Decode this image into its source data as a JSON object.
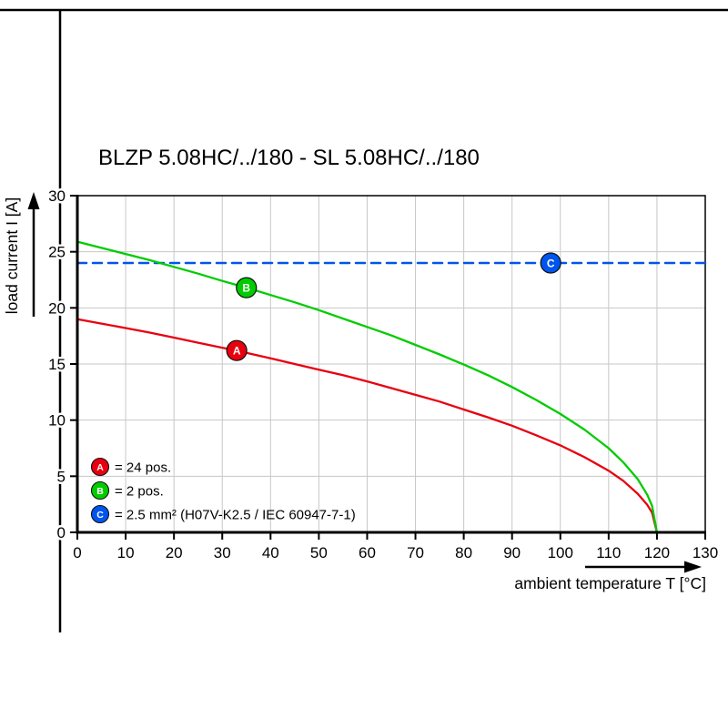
{
  "chart_data": {
    "type": "line",
    "title": "BLZP 5.08HC/../180 - SL 5.08HC/../180",
    "xlabel": "ambient temperature T [°C]",
    "ylabel": "load current I [A]",
    "xlim": [
      0,
      130
    ],
    "ylim": [
      0,
      30
    ],
    "x_ticks": [
      0,
      10,
      20,
      30,
      40,
      50,
      60,
      70,
      80,
      90,
      100,
      110,
      120,
      130
    ],
    "y_ticks": [
      0,
      5,
      10,
      15,
      20,
      25,
      30
    ],
    "grid": true,
    "legend_position": "lower-left",
    "series": [
      {
        "id": "A",
        "name": "24 pos.",
        "color": "#e8000f",
        "style": "solid",
        "points": [
          [
            0,
            19.0
          ],
          [
            5,
            18.6
          ],
          [
            10,
            18.2
          ],
          [
            15,
            17.8
          ],
          [
            20,
            17.35
          ],
          [
            25,
            16.9
          ],
          [
            30,
            16.45
          ],
          [
            35,
            16.0
          ],
          [
            40,
            15.5
          ],
          [
            45,
            15.0
          ],
          [
            50,
            14.5
          ],
          [
            55,
            14.0
          ],
          [
            60,
            13.45
          ],
          [
            65,
            12.85
          ],
          [
            70,
            12.25
          ],
          [
            75,
            11.65
          ],
          [
            80,
            10.95
          ],
          [
            85,
            10.25
          ],
          [
            90,
            9.5
          ],
          [
            95,
            8.65
          ],
          [
            100,
            7.75
          ],
          [
            105,
            6.7
          ],
          [
            110,
            5.5
          ],
          [
            113,
            4.6
          ],
          [
            116,
            3.45
          ],
          [
            118,
            2.45
          ],
          [
            119,
            1.75
          ],
          [
            120,
            0
          ]
        ]
      },
      {
        "id": "B",
        "name": "2 pos.",
        "color": "#00cc00",
        "style": "solid",
        "points": [
          [
            0,
            25.9
          ],
          [
            5,
            25.35
          ],
          [
            10,
            24.8
          ],
          [
            15,
            24.25
          ],
          [
            20,
            23.65
          ],
          [
            25,
            23.05
          ],
          [
            30,
            22.4
          ],
          [
            35,
            21.8
          ],
          [
            40,
            21.15
          ],
          [
            45,
            20.5
          ],
          [
            50,
            19.8
          ],
          [
            55,
            19.05
          ],
          [
            60,
            18.3
          ],
          [
            65,
            17.55
          ],
          [
            70,
            16.7
          ],
          [
            75,
            15.85
          ],
          [
            80,
            14.95
          ],
          [
            85,
            14.0
          ],
          [
            90,
            12.95
          ],
          [
            95,
            11.8
          ],
          [
            100,
            10.55
          ],
          [
            105,
            9.15
          ],
          [
            110,
            7.5
          ],
          [
            113,
            6.25
          ],
          [
            116,
            4.75
          ],
          [
            118,
            3.35
          ],
          [
            119,
            2.35
          ],
          [
            120,
            0
          ]
        ]
      },
      {
        "id": "C",
        "name": "2.5 mm² (H07V-K2.5 / IEC 60947-7-1)",
        "color": "#0055ee",
        "style": "dashed",
        "points": [
          [
            0,
            24
          ],
          [
            130,
            24
          ]
        ]
      }
    ],
    "markers": [
      {
        "label": "A",
        "x": 33,
        "y": 16.2,
        "color": "#e8000f"
      },
      {
        "label": "B",
        "x": 35,
        "y": 21.8,
        "color": "#00cc00"
      },
      {
        "label": "C",
        "x": 98,
        "y": 24,
        "color": "#0055ee"
      }
    ],
    "legend": [
      {
        "label": "A",
        "text": "= 24 pos.",
        "color": "#e8000f"
      },
      {
        "label": "B",
        "text": "= 2 pos.",
        "color": "#00cc00"
      },
      {
        "label": "C",
        "text": "= 2.5 mm² (H07V-K2.5 / IEC 60947-7-1)",
        "color": "#0055ee"
      }
    ]
  }
}
